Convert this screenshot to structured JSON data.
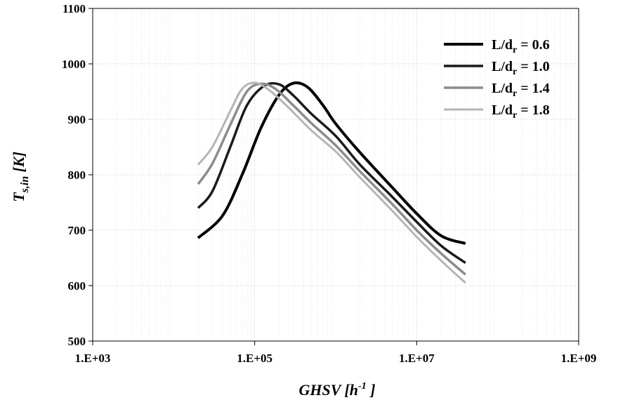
{
  "chart_data": {
    "type": "line",
    "title": "",
    "xlabel": "GHSV [h",
    "xlabel_sup": "-1",
    "xlabel_end": " ]",
    "ylabel_main": "T",
    "ylabel_sub": "s,in",
    "ylabel_unit": " [K]",
    "x_scale": "log",
    "xlim": [
      1000,
      1000000000
    ],
    "ylim": [
      500,
      1100
    ],
    "x_ticks": [
      1000,
      100000,
      10000000,
      1000000000
    ],
    "x_tick_labels": [
      "1.E+03",
      "1.E+05",
      "1.E+07",
      "1.E+09"
    ],
    "y_ticks": [
      500,
      600,
      700,
      800,
      900,
      1000,
      1100
    ],
    "y_tick_labels": [
      "500",
      "600",
      "700",
      "800",
      "900",
      "1000",
      "1100"
    ],
    "grid": true,
    "legend_position": "top-right",
    "series": [
      {
        "name": "L/d",
        "name_sub": "r",
        "name_suffix": " = 0.6",
        "color": "#000000",
        "x": [
          20000,
          40000,
          70000,
          120000,
          200000,
          300000,
          450000,
          700000,
          1000000,
          2000000,
          5000000,
          10000000,
          20000000,
          40000000
        ],
        "y": [
          686,
          726,
          800,
          885,
          944,
          965,
          958,
          925,
          892,
          840,
          777,
          730,
          690,
          676
        ]
      },
      {
        "name": "L/d",
        "name_sub": "r",
        "name_suffix": " = 1.0",
        "color": "#1a1a1a",
        "x": [
          20000,
          30000,
          50000,
          80000,
          130000,
          200000,
          300000,
          500000,
          1000000,
          2000000,
          5000000,
          10000000,
          20000000,
          40000000
        ],
        "y": [
          740,
          770,
          850,
          925,
          960,
          963,
          943,
          910,
          870,
          818,
          760,
          715,
          672,
          641
        ]
      },
      {
        "name": "L/d",
        "name_sub": "r",
        "name_suffix": " = 1.4",
        "color": "#8c8c8c",
        "x": [
          20000,
          30000,
          50000,
          80000,
          120000,
          180000,
          300000,
          500000,
          1000000,
          2000000,
          5000000,
          10000000,
          20000000,
          40000000
        ],
        "y": [
          783,
          820,
          890,
          950,
          964,
          955,
          925,
          893,
          853,
          806,
          747,
          700,
          658,
          620
        ]
      },
      {
        "name": "L/d",
        "name_sub": "r",
        "name_suffix": " = 1.8",
        "color": "#b5b5b5",
        "x": [
          20000,
          30000,
          50000,
          70000,
          100000,
          150000,
          250000,
          500000,
          1000000,
          2000000,
          5000000,
          10000000,
          20000000,
          40000000
        ],
        "y": [
          818,
          850,
          915,
          955,
          966,
          953,
          924,
          880,
          842,
          795,
          735,
          688,
          645,
          605
        ]
      }
    ]
  }
}
